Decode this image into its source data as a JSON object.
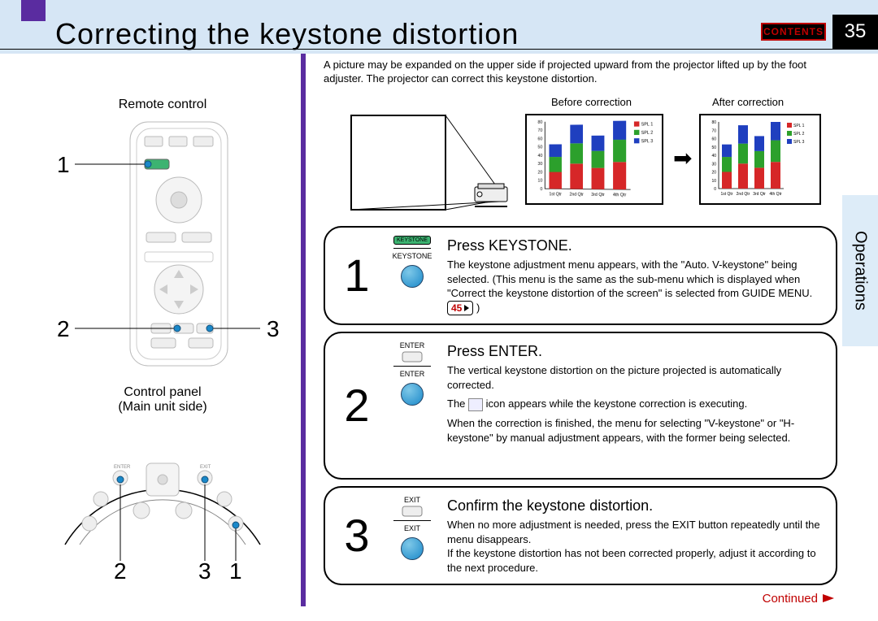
{
  "header": {
    "title": "Correcting the keystone distortion",
    "contents_label": "CONTENTS",
    "page_number": "35"
  },
  "side_tab": "Operations",
  "left": {
    "remote_label": "Remote control",
    "control_panel_label": "Control panel",
    "main_unit_label": "(Main unit side)",
    "callouts_remote": [
      "1",
      "2",
      "3"
    ],
    "callouts_panel": [
      "2",
      "3",
      "1"
    ]
  },
  "intro": "A picture may be expanded on the upper side if projected upward from the projector lifted up by the foot adjuster. The projector can correct this keystone distortion.",
  "diagrams": {
    "before_label": "Before correction",
    "after_label": "After correction",
    "chart": {
      "type": "stacked-bar",
      "categories": [
        "1st Qtr",
        "2nd Qtr",
        "3rd Qtr",
        "4th Qtr"
      ],
      "series": [
        "SPL 1",
        "SPL 2",
        "SPL 3"
      ],
      "colors": [
        "#d62728",
        "#2ca02c",
        "#1f3fbf"
      ],
      "values": [
        [
          20,
          18,
          15
        ],
        [
          30,
          24,
          22
        ],
        [
          25,
          20,
          18
        ],
        [
          32,
          26,
          22
        ]
      ],
      "ylim": [
        0,
        80
      ],
      "ytick_step": 10,
      "background_color": "#ffffff",
      "border_color": "#000000",
      "before_skew_deg": 6
    }
  },
  "steps": [
    {
      "n": "1",
      "button_name": "KEYSTONE",
      "button_sub": "KEYSTONE",
      "title": "Press KEYSTONE.",
      "body": "The keystone adjustment menu appears, with the \"Auto. V-keystone\" being selected. (This menu is the same as the sub-menu which is displayed when \"Correct the keystone distortion of the screen\" is selected from GUIDE MENU.",
      "page_ref": "45"
    },
    {
      "n": "2",
      "button_name": "ENTER",
      "button_sub": "ENTER",
      "title": "Press ENTER.",
      "body1": "The vertical keystone distortion on the picture projected is automatically corrected.",
      "body2": "The",
      "body2b": "icon appears while the keystone correction is executing.",
      "body3": "When the correction is finished, the menu for selecting \"V-keystone\" or \"H-keystone\" by manual adjustment appears, with the former being selected."
    },
    {
      "n": "3",
      "button_name": "EXIT",
      "button_sub": "EXIT",
      "title": "Confirm the keystone distortion.",
      "body1": "When no more adjustment is needed, press the EXIT button repeatedly until the menu disappears.",
      "body2": "If the keystone distortion has not been corrected properly, adjust it according to the next procedure."
    }
  ],
  "footer": {
    "continued": "Continued"
  },
  "colors": {
    "purple": "#5a2ca0",
    "topband": "#d6e6f5",
    "red": "#c00000",
    "btn_blue": "#1a88c9"
  }
}
